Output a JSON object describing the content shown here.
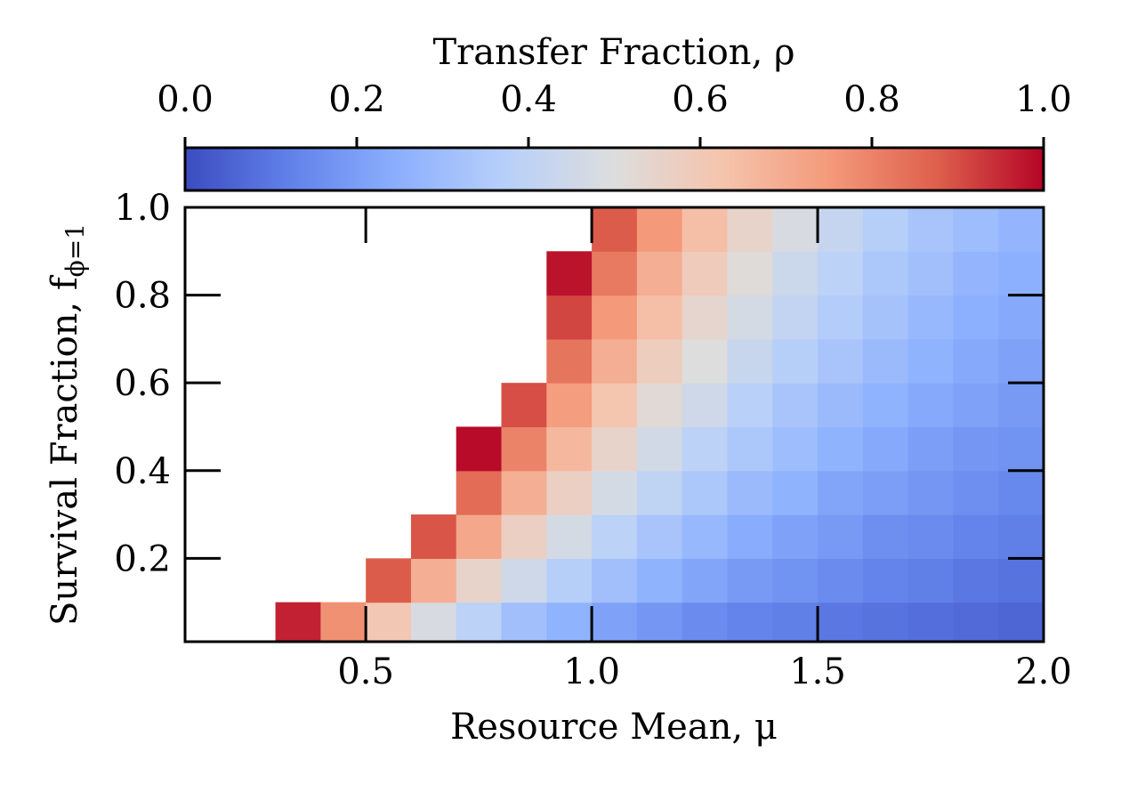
{
  "chart_data": {
    "type": "heatmap",
    "colorbar_label": "Transfer Fraction, ρ",
    "x_label": "Resource Mean, μ",
    "y_label": "Survival Fraction, f",
    "y_label_subscript": "ϕ=1",
    "colormap": [
      "#3b4cc0",
      "#6282ea",
      "#8db0fe",
      "#b8d0f9",
      "#dddddd",
      "#f5c4ad",
      "#f49a7b",
      "#de604d",
      "#b40426"
    ],
    "clim": [
      0,
      1
    ],
    "cticks": [
      {
        "value": 0,
        "label": "0.0"
      },
      0.2,
      0.4,
      0.6,
      0.8,
      {
        "value": 1,
        "label": "1.0"
      }
    ],
    "xlim": [
      0.1,
      2.0
    ],
    "ylim": [
      0.01,
      1.0
    ],
    "xticks": [
      0.5,
      {
        "value": 1,
        "label": "1.0"
      },
      1.5,
      {
        "value": 2,
        "label": "2.0"
      }
    ],
    "yticks": [
      0.2,
      0.4,
      0.6,
      0.8,
      {
        "value": 1,
        "label": "1.0"
      }
    ],
    "x": [
      0.15,
      0.25,
      0.35,
      0.45,
      0.55,
      0.65,
      0.75,
      0.85,
      0.95,
      1.05,
      1.15,
      1.25,
      1.35,
      1.45,
      1.55,
      1.65,
      1.75,
      1.85,
      1.95
    ],
    "y": [
      0.05,
      0.15,
      0.25,
      0.35,
      0.45,
      0.55,
      0.65,
      0.75,
      0.85,
      0.95
    ],
    "z": [
      [
        null,
        null,
        0.96,
        0.77,
        0.61,
        0.48,
        0.39,
        0.31,
        0.26,
        0.21,
        0.18,
        0.15,
        0.13,
        0.12,
        0.1,
        0.09,
        0.08,
        0.07,
        0.06
      ],
      [
        null,
        null,
        null,
        null,
        0.88,
        0.69,
        0.55,
        0.45,
        0.37,
        0.31,
        0.26,
        0.22,
        0.19,
        0.17,
        0.15,
        0.13,
        0.12,
        0.1,
        0.09
      ],
      [
        null,
        null,
        null,
        null,
        null,
        0.89,
        0.71,
        0.57,
        0.47,
        0.39,
        0.33,
        0.28,
        0.24,
        0.21,
        0.19,
        0.16,
        0.15,
        0.13,
        0.12
      ],
      [
        null,
        null,
        null,
        null,
        null,
        null,
        0.85,
        0.69,
        0.57,
        0.47,
        0.4,
        0.34,
        0.29,
        0.26,
        0.22,
        0.2,
        0.18,
        0.16,
        0.14
      ],
      [
        null,
        null,
        null,
        null,
        null,
        null,
        0.99,
        0.8,
        0.66,
        0.55,
        0.46,
        0.39,
        0.34,
        0.3,
        0.26,
        0.23,
        0.2,
        0.18,
        0.17
      ],
      [
        null,
        null,
        null,
        null,
        null,
        null,
        null,
        0.9,
        0.74,
        0.62,
        0.52,
        0.45,
        0.38,
        0.33,
        0.29,
        0.26,
        0.23,
        0.21,
        0.19
      ],
      [
        null,
        null,
        null,
        null,
        null,
        null,
        null,
        null,
        0.83,
        0.69,
        0.58,
        0.5,
        0.43,
        0.37,
        0.33,
        0.29,
        0.26,
        0.23,
        0.21
      ],
      [
        null,
        null,
        null,
        null,
        null,
        null,
        null,
        null,
        0.91,
        0.75,
        0.64,
        0.54,
        0.47,
        0.41,
        0.36,
        0.32,
        0.28,
        0.25,
        0.23
      ],
      [
        null,
        null,
        null,
        null,
        null,
        null,
        null,
        null,
        0.98,
        0.82,
        0.69,
        0.59,
        0.51,
        0.44,
        0.39,
        0.34,
        0.31,
        0.27,
        0.25
      ],
      [
        null,
        null,
        null,
        null,
        null,
        null,
        null,
        null,
        null,
        0.88,
        0.75,
        0.64,
        0.55,
        0.48,
        0.42,
        0.37,
        0.33,
        0.3,
        0.27
      ]
    ]
  }
}
